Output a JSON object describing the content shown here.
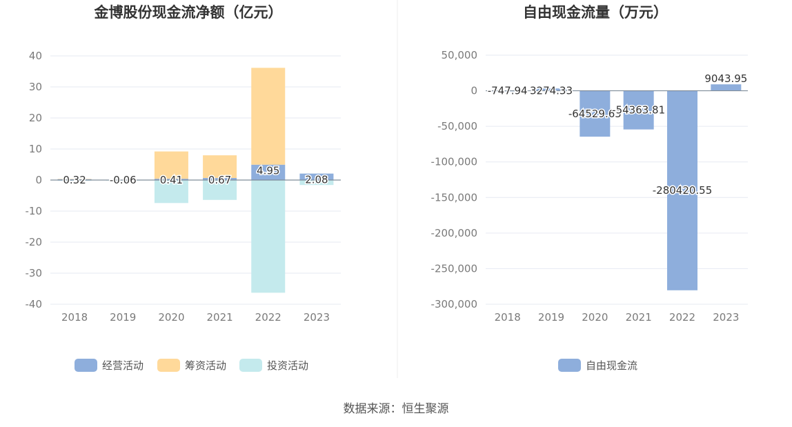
{
  "source": "数据来源：恒生聚源",
  "colors": {
    "operating": "#8eaedc",
    "financing": "#ffd99a",
    "investing": "#86d6da",
    "free_cash_flow": "#8eaedc",
    "grid": "#e6e9f2",
    "zero_line": "#7f8c99"
  },
  "chart_data": [
    {
      "type": "bar",
      "stacked": true,
      "title": "金博股份现金流净额（亿元）",
      "categories": [
        "2018",
        "2019",
        "2020",
        "2021",
        "2022",
        "2023"
      ],
      "ylim": [
        -40,
        40
      ],
      "yticks": [
        "40",
        "30",
        "20",
        "10",
        "0",
        "-10",
        "-20",
        "-30",
        "-40"
      ],
      "grid": true,
      "legend_position": "bottom",
      "series": [
        {
          "name": "经营活动",
          "color": "#8eaedc",
          "values": [
            0.32,
            -0.06,
            0.41,
            0.67,
            4.95,
            2.08
          ]
        },
        {
          "name": "筹资活动",
          "color": "#ffd99a",
          "values": [
            0.05,
            0,
            8.8,
            7.3,
            31.2,
            0
          ]
        },
        {
          "name": "投资活动",
          "color": "#c4eaed",
          "values": [
            -0.2,
            -0.1,
            -7.4,
            -6.4,
            -36.3,
            -1.6
          ]
        }
      ],
      "data_labels": [
        "0.32",
        "-0.06",
        "0.41",
        "0.67",
        "4.95",
        "2.08"
      ]
    },
    {
      "type": "bar",
      "title": "自由现金流量（万元）",
      "categories": [
        "2018",
        "2019",
        "2020",
        "2021",
        "2022",
        "2023"
      ],
      "ylim": [
        -300000,
        50000
      ],
      "yticks": [
        "50,000",
        "0",
        "-50,000",
        "-100,000",
        "-150,000",
        "-200,000",
        "-250,000",
        "-300,000"
      ],
      "grid": true,
      "legend_position": "bottom",
      "series": [
        {
          "name": "自由现金流",
          "color": "#8eaedc",
          "values": [
            -747.94,
            3274.33,
            -64529.65,
            -54363.81,
            -280420.55,
            9043.95
          ]
        }
      ],
      "data_labels": [
        "-747.94",
        "3274.33",
        "-64529.65",
        "-54363.81",
        "-280420.55",
        "9043.95"
      ]
    }
  ]
}
